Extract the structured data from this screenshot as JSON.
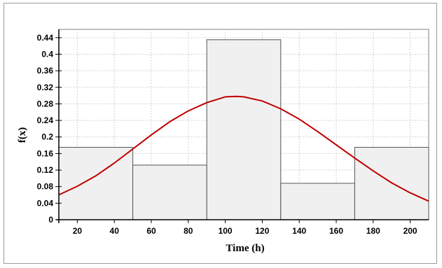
{
  "chart_data": {
    "type": "bar",
    "title": "",
    "xlabel": "Time (h)",
    "ylabel": "f(x)",
    "xlim": [
      10,
      210
    ],
    "ylim": [
      0,
      0.46
    ],
    "xticks": [
      20,
      40,
      60,
      80,
      100,
      120,
      140,
      160,
      180,
      200
    ],
    "yticks": [
      0,
      0.04,
      0.08,
      0.12,
      0.16,
      0.2,
      0.24,
      0.28,
      0.32,
      0.36,
      0.4,
      0.44
    ],
    "ytick_labels": [
      "0",
      "0.04",
      "0.08",
      "0.12",
      "0.16",
      "0.2",
      "0.24",
      "0.28",
      "0.32",
      "0.36",
      "0.4",
      "0.44"
    ],
    "bins": [
      {
        "x0": 10,
        "x1": 50,
        "value": 0.175
      },
      {
        "x0": 50,
        "x1": 90,
        "value": 0.132
      },
      {
        "x0": 90,
        "x1": 130,
        "value": 0.435
      },
      {
        "x0": 130,
        "x1": 170,
        "value": 0.088
      },
      {
        "x0": 170,
        "x1": 210,
        "value": 0.175
      }
    ],
    "curve": {
      "type": "normal-density",
      "x": [
        10,
        20,
        30,
        40,
        50,
        60,
        70,
        80,
        90,
        100,
        106,
        110,
        120,
        130,
        140,
        150,
        160,
        170,
        180,
        190,
        200,
        210
      ],
      "y": [
        0.06,
        0.081,
        0.106,
        0.137,
        0.171,
        0.205,
        0.237,
        0.263,
        0.283,
        0.297,
        0.298,
        0.297,
        0.287,
        0.268,
        0.243,
        0.213,
        0.181,
        0.149,
        0.118,
        0.089,
        0.065,
        0.045
      ]
    },
    "colors": {
      "bar_fill": "#f0f0f0",
      "bar_stroke": "#555555",
      "curve": "#c00000",
      "grid": "#d0d0d0",
      "axis": "#000000"
    },
    "grid": true,
    "legend": "none"
  }
}
